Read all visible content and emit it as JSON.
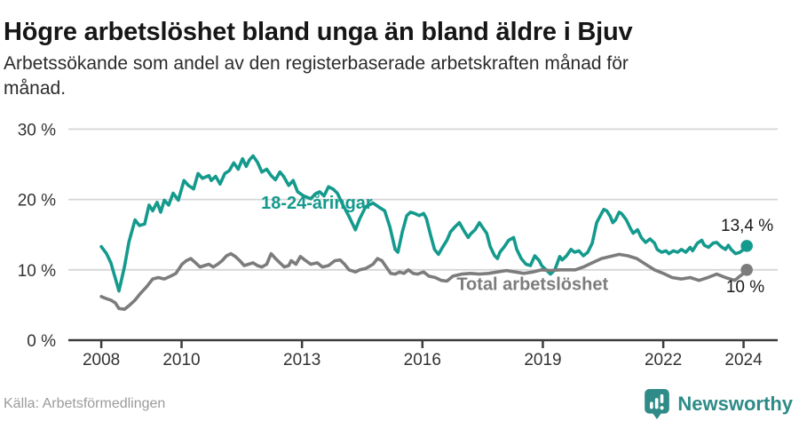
{
  "chart_data": {
    "type": "line",
    "title": "Högre arbetslöshet bland unga än bland äldre i Bjuv",
    "subtitle": "Arbetssökande som andel av den registerbaserade arbetskraften månad för månad.",
    "subtitle_lines": [
      "Arbetssökande som andel av den registerbaserade arbetskraften månad för",
      "månad."
    ],
    "legend": "inline-labels",
    "grid": "horizontal",
    "x_axis": {
      "xlim": [
        2007.18,
        2024.85
      ],
      "ticks": [
        2008,
        2010,
        2013,
        2016,
        2019,
        2022,
        2024
      ],
      "tick_labels": [
        "2008",
        "2010",
        "2013",
        "2016",
        "2019",
        "2022",
        "2024"
      ]
    },
    "y_axis": {
      "ylim": [
        0,
        30.3
      ],
      "ticks": [
        0,
        10,
        20,
        30
      ],
      "tick_labels": [
        "0 %",
        "10 %",
        "20 %",
        "30 %"
      ],
      "grid_values": [
        10,
        20,
        30
      ]
    },
    "colors": {
      "grid": "#d6d6d6",
      "axis": "#3c3c3c",
      "tick_label": "#333333",
      "value_label": "#1a1a1a"
    },
    "series": [
      {
        "id": "youth",
        "name": "18-24-åringar",
        "color": "#149a8d",
        "label_color": "#149a8d",
        "label_pos": {
          "x": 2013.37,
          "y": 19.6
        },
        "end_label": "13,4 %",
        "end_value": 13.4,
        "end_label_offset": [
          30,
          -17
        ],
        "points": [
          [
            2008.0,
            13.3
          ],
          [
            2008.13,
            12.3
          ],
          [
            2008.24,
            11.0
          ],
          [
            2008.35,
            8.8
          ],
          [
            2008.44,
            7.0
          ],
          [
            2008.58,
            10.5
          ],
          [
            2008.69,
            14.0
          ],
          [
            2008.84,
            17.1
          ],
          [
            2008.95,
            16.3
          ],
          [
            2009.08,
            16.5
          ],
          [
            2009.19,
            19.2
          ],
          [
            2009.28,
            18.4
          ],
          [
            2009.39,
            19.6
          ],
          [
            2009.48,
            18.2
          ],
          [
            2009.57,
            19.9
          ],
          [
            2009.68,
            19.2
          ],
          [
            2009.79,
            20.9
          ],
          [
            2009.92,
            19.9
          ],
          [
            2010.06,
            22.7
          ],
          [
            2010.17,
            22.0
          ],
          [
            2010.3,
            21.5
          ],
          [
            2010.41,
            23.7
          ],
          [
            2010.52,
            23.0
          ],
          [
            2010.68,
            23.4
          ],
          [
            2010.74,
            22.7
          ],
          [
            2010.85,
            23.3
          ],
          [
            2010.96,
            22.2
          ],
          [
            2011.08,
            23.7
          ],
          [
            2011.19,
            24.1
          ],
          [
            2011.3,
            25.2
          ],
          [
            2011.41,
            24.3
          ],
          [
            2011.52,
            25.8
          ],
          [
            2011.61,
            24.7
          ],
          [
            2011.69,
            25.6
          ],
          [
            2011.78,
            26.2
          ],
          [
            2011.89,
            25.3
          ],
          [
            2012.0,
            23.9
          ],
          [
            2012.12,
            24.3
          ],
          [
            2012.23,
            23.4
          ],
          [
            2012.34,
            22.8
          ],
          [
            2012.45,
            23.9
          ],
          [
            2012.54,
            23.3
          ],
          [
            2012.67,
            22.0
          ],
          [
            2012.78,
            22.7
          ],
          [
            2012.89,
            21.1
          ],
          [
            2013.04,
            20.5
          ],
          [
            2013.22,
            20.1
          ],
          [
            2013.33,
            20.8
          ],
          [
            2013.44,
            21.1
          ],
          [
            2013.55,
            20.5
          ],
          [
            2013.66,
            21.8
          ],
          [
            2013.77,
            21.5
          ],
          [
            2013.88,
            20.9
          ],
          [
            2014.02,
            19.2
          ],
          [
            2014.17,
            17.6
          ],
          [
            2014.33,
            15.7
          ],
          [
            2014.44,
            17.3
          ],
          [
            2014.59,
            19.0
          ],
          [
            2014.77,
            19.5
          ],
          [
            2014.92,
            18.9
          ],
          [
            2015.06,
            18.4
          ],
          [
            2015.19,
            16.1
          ],
          [
            2015.32,
            12.9
          ],
          [
            2015.39,
            12.5
          ],
          [
            2015.5,
            15.4
          ],
          [
            2015.61,
            17.7
          ],
          [
            2015.7,
            18.2
          ],
          [
            2015.81,
            18.0
          ],
          [
            2015.92,
            17.7
          ],
          [
            2016.03,
            18.0
          ],
          [
            2016.1,
            17.3
          ],
          [
            2016.2,
            15.0
          ],
          [
            2016.3,
            12.9
          ],
          [
            2016.4,
            12.2
          ],
          [
            2016.5,
            13.2
          ],
          [
            2016.61,
            14.2
          ],
          [
            2016.7,
            15.4
          ],
          [
            2016.81,
            16.1
          ],
          [
            2016.92,
            16.7
          ],
          [
            2017.05,
            15.4
          ],
          [
            2017.14,
            14.6
          ],
          [
            2017.2,
            15.1
          ],
          [
            2017.31,
            15.7
          ],
          [
            2017.42,
            16.7
          ],
          [
            2017.49,
            16.1
          ],
          [
            2017.6,
            15.2
          ],
          [
            2017.69,
            13.3
          ],
          [
            2017.8,
            12.0
          ],
          [
            2017.87,
            11.6
          ],
          [
            2017.93,
            12.5
          ],
          [
            2018.04,
            13.3
          ],
          [
            2018.15,
            14.2
          ],
          [
            2018.27,
            14.6
          ],
          [
            2018.35,
            12.9
          ],
          [
            2018.46,
            11.6
          ],
          [
            2018.58,
            10.8
          ],
          [
            2018.69,
            10.6
          ],
          [
            2018.8,
            12.0
          ],
          [
            2018.91,
            11.3
          ],
          [
            2018.97,
            10.6
          ],
          [
            2019.08,
            10.0
          ],
          [
            2019.19,
            9.4
          ],
          [
            2019.3,
            10.0
          ],
          [
            2019.42,
            11.9
          ],
          [
            2019.48,
            11.4
          ],
          [
            2019.59,
            12.0
          ],
          [
            2019.7,
            12.9
          ],
          [
            2019.79,
            12.5
          ],
          [
            2019.9,
            12.7
          ],
          [
            2020.01,
            12.0
          ],
          [
            2020.12,
            12.5
          ],
          [
            2020.23,
            13.8
          ],
          [
            2020.34,
            16.7
          ],
          [
            2020.46,
            18.0
          ],
          [
            2020.52,
            18.6
          ],
          [
            2020.59,
            18.4
          ],
          [
            2020.68,
            17.6
          ],
          [
            2020.74,
            16.7
          ],
          [
            2020.81,
            17.1
          ],
          [
            2020.9,
            18.2
          ],
          [
            2020.96,
            18.0
          ],
          [
            2021.08,
            17.1
          ],
          [
            2021.19,
            15.8
          ],
          [
            2021.25,
            15.2
          ],
          [
            2021.36,
            15.7
          ],
          [
            2021.45,
            14.6
          ],
          [
            2021.56,
            13.9
          ],
          [
            2021.67,
            14.4
          ],
          [
            2021.78,
            13.8
          ],
          [
            2021.85,
            12.9
          ],
          [
            2021.96,
            12.5
          ],
          [
            2022.07,
            12.7
          ],
          [
            2022.14,
            12.3
          ],
          [
            2022.25,
            12.7
          ],
          [
            2022.36,
            12.5
          ],
          [
            2022.45,
            12.9
          ],
          [
            2022.56,
            12.5
          ],
          [
            2022.67,
            13.2
          ],
          [
            2022.73,
            12.7
          ],
          [
            2022.85,
            13.8
          ],
          [
            2022.96,
            14.2
          ],
          [
            2023.02,
            13.5
          ],
          [
            2023.13,
            13.2
          ],
          [
            2023.24,
            13.8
          ],
          [
            2023.33,
            13.9
          ],
          [
            2023.44,
            13.3
          ],
          [
            2023.55,
            12.9
          ],
          [
            2023.62,
            13.5
          ],
          [
            2023.69,
            12.9
          ],
          [
            2023.8,
            12.3
          ],
          [
            2023.91,
            12.5
          ],
          [
            2024.0,
            12.9
          ],
          [
            2024.08,
            13.4
          ]
        ]
      },
      {
        "id": "total",
        "name": "Total arbetslöshet",
        "color": "#7c7c7c",
        "label_color": "#7c7c7c",
        "label_pos": {
          "x": 2018.74,
          "y": 8.0
        },
        "end_label": "10 %",
        "end_value": 10.0,
        "end_label_offset": [
          20,
          25
        ],
        "points": [
          [
            2008.0,
            6.2
          ],
          [
            2008.13,
            5.9
          ],
          [
            2008.24,
            5.7
          ],
          [
            2008.35,
            5.3
          ],
          [
            2008.44,
            4.5
          ],
          [
            2008.58,
            4.4
          ],
          [
            2008.69,
            4.9
          ],
          [
            2008.84,
            5.7
          ],
          [
            2008.97,
            6.6
          ],
          [
            2009.13,
            7.6
          ],
          [
            2009.28,
            8.7
          ],
          [
            2009.42,
            8.9
          ],
          [
            2009.57,
            8.7
          ],
          [
            2009.73,
            9.1
          ],
          [
            2009.86,
            9.5
          ],
          [
            2010.01,
            10.8
          ],
          [
            2010.12,
            11.3
          ],
          [
            2010.23,
            11.6
          ],
          [
            2010.35,
            11.0
          ],
          [
            2010.46,
            10.4
          ],
          [
            2010.57,
            10.6
          ],
          [
            2010.68,
            10.8
          ],
          [
            2010.79,
            10.4
          ],
          [
            2010.9,
            10.8
          ],
          [
            2011.01,
            11.3
          ],
          [
            2011.12,
            12.0
          ],
          [
            2011.23,
            12.3
          ],
          [
            2011.34,
            11.9
          ],
          [
            2011.45,
            11.3
          ],
          [
            2011.56,
            10.6
          ],
          [
            2011.67,
            10.8
          ],
          [
            2011.78,
            11.0
          ],
          [
            2011.89,
            10.6
          ],
          [
            2012.0,
            10.4
          ],
          [
            2012.12,
            10.8
          ],
          [
            2012.23,
            12.3
          ],
          [
            2012.34,
            11.6
          ],
          [
            2012.45,
            11.0
          ],
          [
            2012.56,
            10.4
          ],
          [
            2012.67,
            10.6
          ],
          [
            2012.73,
            11.3
          ],
          [
            2012.85,
            10.8
          ],
          [
            2012.96,
            11.9
          ],
          [
            2013.07,
            11.4
          ],
          [
            2013.22,
            10.8
          ],
          [
            2013.38,
            11.0
          ],
          [
            2013.51,
            10.4
          ],
          [
            2013.66,
            10.6
          ],
          [
            2013.82,
            11.3
          ],
          [
            2013.95,
            11.4
          ],
          [
            2014.06,
            10.8
          ],
          [
            2014.17,
            10.0
          ],
          [
            2014.33,
            9.7
          ],
          [
            2014.44,
            10.0
          ],
          [
            2014.59,
            10.2
          ],
          [
            2014.77,
            10.8
          ],
          [
            2014.88,
            11.6
          ],
          [
            2014.99,
            11.3
          ],
          [
            2015.1,
            10.4
          ],
          [
            2015.21,
            9.5
          ],
          [
            2015.32,
            9.4
          ],
          [
            2015.43,
            9.7
          ],
          [
            2015.54,
            9.5
          ],
          [
            2015.65,
            10.0
          ],
          [
            2015.77,
            9.5
          ],
          [
            2015.88,
            9.4
          ],
          [
            2016.03,
            9.7
          ],
          [
            2016.16,
            9.1
          ],
          [
            2016.32,
            8.9
          ],
          [
            2016.47,
            8.5
          ],
          [
            2016.61,
            8.4
          ],
          [
            2016.76,
            9.1
          ],
          [
            2016.98,
            9.4
          ],
          [
            2017.2,
            9.5
          ],
          [
            2017.42,
            9.4
          ],
          [
            2017.65,
            9.5
          ],
          [
            2017.87,
            9.7
          ],
          [
            2018.09,
            9.9
          ],
          [
            2018.31,
            9.7
          ],
          [
            2018.53,
            9.5
          ],
          [
            2018.75,
            9.7
          ],
          [
            2018.97,
            10.0
          ],
          [
            2019.19,
            9.9
          ],
          [
            2019.42,
            10.0
          ],
          [
            2019.64,
            10.0
          ],
          [
            2019.81,
            10.0
          ],
          [
            2020.01,
            10.4
          ],
          [
            2020.23,
            11.0
          ],
          [
            2020.46,
            11.6
          ],
          [
            2020.68,
            11.9
          ],
          [
            2020.9,
            12.2
          ],
          [
            2021.12,
            12.0
          ],
          [
            2021.34,
            11.6
          ],
          [
            2021.56,
            10.8
          ],
          [
            2021.78,
            10.0
          ],
          [
            2022.0,
            9.5
          ],
          [
            2022.22,
            8.9
          ],
          [
            2022.45,
            8.7
          ],
          [
            2022.67,
            8.9
          ],
          [
            2022.89,
            8.5
          ],
          [
            2023.11,
            8.9
          ],
          [
            2023.33,
            9.4
          ],
          [
            2023.55,
            8.9
          ],
          [
            2023.78,
            8.5
          ],
          [
            2023.91,
            9.1
          ],
          [
            2024.0,
            9.5
          ],
          [
            2024.08,
            10.0
          ]
        ]
      }
    ]
  },
  "footer": {
    "source": "Källa: Arbetsförmedlingen",
    "brand": "Newsworthy",
    "brand_color": "#2e8b87",
    "brand_icon": "speech-bubble-bar-chart-icon"
  }
}
